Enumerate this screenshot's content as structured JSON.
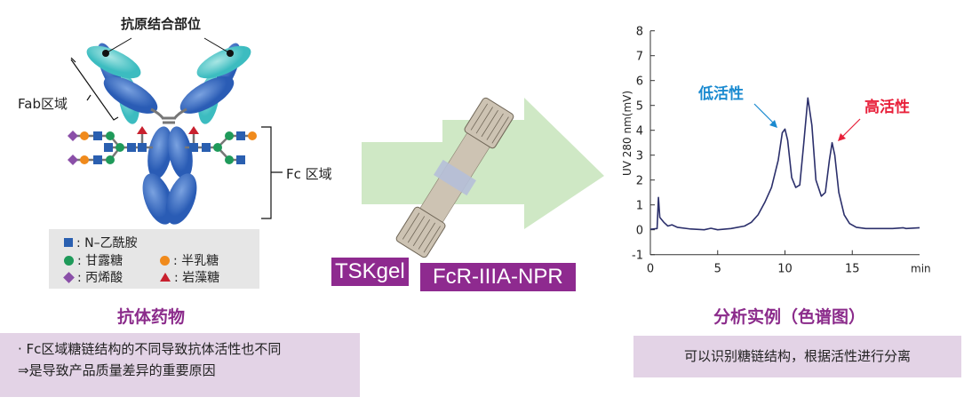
{
  "antibody": {
    "antigen_site_label": "抗原结合部位",
    "fab_label": "Fab区域",
    "fc_label": "Fc 区域",
    "title": "抗体药物",
    "legend": [
      {
        "icon": "blue-square",
        "label": ": N–乙酰胺",
        "color": "#2a5fb0"
      },
      {
        "icon": "green-circle",
        "label": ": 甘露糖",
        "color": "#1f9a5a"
      },
      {
        "icon": "orange-circle",
        "label": ": 半乳糖",
        "color": "#f08a1c"
      },
      {
        "icon": "purple-diamond",
        "label": ": 丙烯酸",
        "color": "#8a4fa8"
      },
      {
        "icon": "red-triangle",
        "label": ": 岩藻糖",
        "color": "#c8202e"
      }
    ]
  },
  "note_left": {
    "line1": "· Fc区域糖链结构的不同导致抗体活性也不同",
    "line2": "⇒是导致产品质量差异的重要原因"
  },
  "column": {
    "brand": "TSKgel",
    "name": "FcR-IIIA-NPR",
    "arrow_color": "#cfe8c5",
    "tag_color": "#8e2a8f"
  },
  "analysis": {
    "title": "分析实例（色谱图）",
    "note": "可以识别糖链结构，根据活性进行分离"
  },
  "chart_data": {
    "type": "line",
    "xlabel": "min",
    "ylabel": "UV 280 nm(mV)",
    "xlim": [
      0,
      20
    ],
    "ylim": [
      -1,
      8
    ],
    "xticks": [
      "0",
      "5",
      "10",
      "15"
    ],
    "yticks": [
      "-1",
      "0",
      "1",
      "2",
      "3",
      "4",
      "5",
      "6",
      "7",
      "8"
    ],
    "grid": false,
    "line_color": "#2b2f6b",
    "annotations": [
      {
        "text": "低活性",
        "color": "#1a8ad0",
        "at_x": 10.0
      },
      {
        "text": "高活性",
        "color": "#e8203a",
        "at_x": 13.5
      }
    ],
    "series": [
      {
        "x": [
          0,
          0.5,
          0.6,
          0.7,
          1,
          1.3,
          1.6,
          2,
          3,
          4,
          4.5,
          5,
          6,
          7,
          7.5,
          8,
          8.5,
          9,
          9.5,
          9.8,
          10,
          10.2,
          10.5,
          10.8,
          11.1,
          11.4,
          11.7,
          12,
          12.3,
          12.7,
          13,
          13.3,
          13.5,
          13.7,
          14,
          14.4,
          14.8,
          15.3,
          16,
          18,
          18.8,
          19,
          20
        ],
        "y": [
          0.02,
          0.05,
          1.3,
          0.5,
          0.3,
          0.15,
          0.2,
          0.1,
          0.03,
          0,
          0.06,
          0,
          0.05,
          0.15,
          0.3,
          0.6,
          1.1,
          1.7,
          2.8,
          3.9,
          4.05,
          3.6,
          2.1,
          1.7,
          1.8,
          3.5,
          5.3,
          4.2,
          2.0,
          1.35,
          1.5,
          2.8,
          3.5,
          3.0,
          1.5,
          0.6,
          0.25,
          0.1,
          0.05,
          0.05,
          0.08,
          0.05,
          0.08
        ]
      }
    ]
  }
}
